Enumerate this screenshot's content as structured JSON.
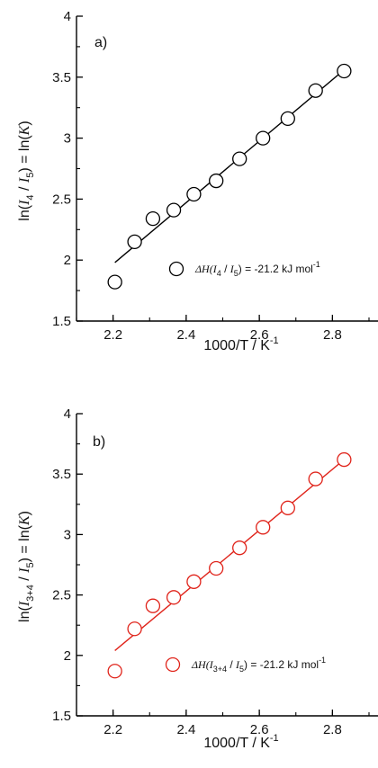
{
  "chart_data": [
    {
      "type": "scatter",
      "panel_label": "a)",
      "xlabel": "1000/T / K",
      "xlabel_sup": "-1",
      "ylabel": {
        "prefix": "ln(",
        "num": "I",
        "num_sub": "4",
        "sep": " / ",
        "den": "I",
        "den_sub": "5",
        "suffix": ") = ln(",
        "k": "K",
        "end": ")"
      },
      "xlim": [
        2.1,
        2.9
      ],
      "ylim": [
        1.5,
        4.0
      ],
      "xticks": [
        "2.2",
        "2.4",
        "2.6",
        "2.8"
      ],
      "yticks": [
        "1.5",
        "2",
        "2.5",
        "3",
        "3.5",
        "4"
      ],
      "color": "#000000",
      "series": [
        {
          "x": [
            2.205,
            2.259,
            2.309,
            2.366,
            2.421,
            2.482,
            2.546,
            2.61,
            2.678,
            2.754,
            2.832
          ],
          "y": [
            1.82,
            2.15,
            2.34,
            2.41,
            2.54,
            2.65,
            2.83,
            3.0,
            3.16,
            3.39,
            3.55
          ]
        }
      ],
      "fit_line": {
        "x": [
          2.205,
          2.832
        ],
        "y": [
          1.98,
          3.56
        ]
      },
      "legend": {
        "delta": "ΔH(",
        "i1": "I",
        "i1_sub": "4",
        "sep": " / ",
        "i2": "I",
        "i2_sub": "5",
        "value": ") = -21.2  kJ mol",
        "unit_sup": "-1",
        "placement": "bottom-right"
      }
    },
    {
      "type": "scatter",
      "panel_label": "b)",
      "xlabel": "1000/T / K",
      "xlabel_sup": "-1",
      "ylabel": {
        "prefix": "ln(",
        "num": "I",
        "num_sub": "3+4",
        "sep": " / ",
        "den": "I",
        "den_sub": "5",
        "suffix": ") = ln(",
        "k": "K",
        "end": ")"
      },
      "xlim": [
        2.1,
        2.9
      ],
      "ylim": [
        1.5,
        4.0
      ],
      "xticks": [
        "2.2",
        "2.4",
        "2.6",
        "2.8"
      ],
      "yticks": [
        "1.5",
        "2",
        "2.5",
        "3",
        "3.5",
        "4"
      ],
      "color": "#e0241b",
      "series": [
        {
          "x": [
            2.205,
            2.259,
            2.309,
            2.366,
            2.421,
            2.482,
            2.546,
            2.61,
            2.678,
            2.754,
            2.832
          ],
          "y": [
            1.87,
            2.22,
            2.41,
            2.48,
            2.61,
            2.72,
            2.89,
            3.06,
            3.22,
            3.46,
            3.62
          ]
        }
      ],
      "fit_line": {
        "x": [
          2.205,
          2.832
        ],
        "y": [
          2.04,
          3.62
        ]
      },
      "legend": {
        "delta": "ΔH(",
        "i1": "I",
        "i1_sub": "3+4",
        "sep": " / ",
        "i2": "I",
        "i2_sub": "5",
        "value": ") = -21.2  kJ mol",
        "unit_sup": "-1",
        "placement": "bottom-right"
      }
    }
  ]
}
